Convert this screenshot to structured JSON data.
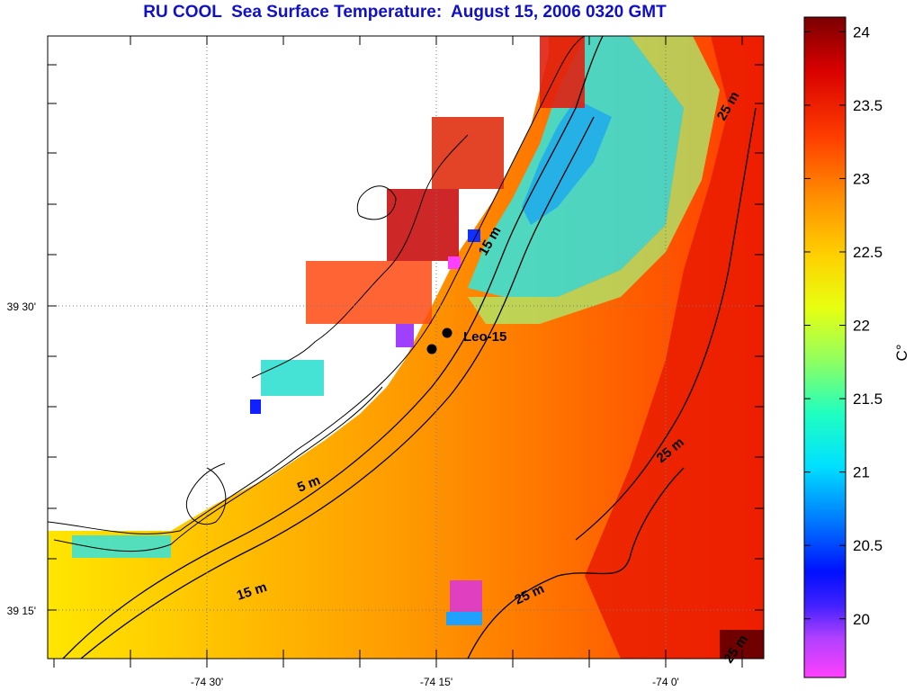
{
  "title": "RU COOL  Sea Surface Temperature:  August 15, 2006 0320 GMT",
  "axes": {
    "lat_labels": [
      "39 30'",
      "39 15'"
    ],
    "lon_labels": [
      "-74 30'",
      "-74 15'",
      "-74 0'"
    ]
  },
  "station": {
    "label": "Leo-15"
  },
  "isobaths": [
    "5 m",
    "15 m",
    "15 m",
    "25 m",
    "25 m",
    "25 m",
    "25 m"
  ],
  "colorbar": {
    "unit_label": "C°",
    "min": 19.6,
    "max": 24.1,
    "ticks": [
      "20",
      "20.5",
      "21",
      "21.5",
      "22",
      "22.5",
      "23",
      "23.5",
      "24"
    ],
    "tick_values": [
      20,
      20.5,
      21,
      21.5,
      22,
      22.5,
      23,
      23.5,
      24
    ],
    "colors": [
      "#ff40ff",
      "#c040ff",
      "#3010ff",
      "#0060ff",
      "#00c8ff",
      "#00ffe0",
      "#80ff80",
      "#e0ff20",
      "#ffe000",
      "#ffa000",
      "#ff6000",
      "#ff2000",
      "#d00000",
      "#800000"
    ]
  }
}
